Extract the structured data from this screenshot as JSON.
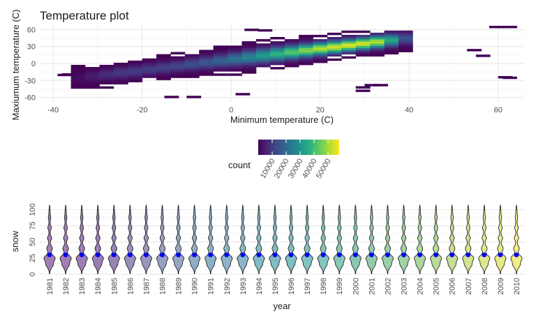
{
  "chart_data": [
    {
      "type": "heatmap",
      "title": "Temperature plot",
      "xlabel": "Minimum temperature (C)",
      "ylabel": "Maxiumum temperature (C)",
      "xlim": [
        -43,
        66
      ],
      "ylim": [
        -68,
        68
      ],
      "x_ticks": [
        -40,
        -20,
        0,
        20,
        40,
        60
      ],
      "y_ticks": [
        -60,
        -30,
        0,
        30,
        60
      ],
      "grid": true,
      "legend": {
        "title": "count",
        "position": "middle",
        "ticks": [
          "10000",
          "20000",
          "30000",
          "40000",
          "50000"
        ],
        "colors": [
          "#440154",
          "#482878",
          "#3e4a89",
          "#31688e",
          "#26828e",
          "#1f9e89",
          "#35b779",
          "#6ece58",
          "#b5de2b",
          "#fde725"
        ],
        "range": [
          0,
          58000
        ]
      },
      "correlation_band": {
        "slope": 0.95,
        "intercept": 7,
        "peak": [
          25,
          16
        ],
        "peak_count": 55000
      },
      "outlier_bins": [
        {
          "x": -39,
          "y": -22
        },
        {
          "x": -38,
          "y": -21
        },
        {
          "x": 3,
          "y": 58
        },
        {
          "x": 6,
          "y": 57
        },
        {
          "x": 58,
          "y": 63
        },
        {
          "x": 61,
          "y": 63
        },
        {
          "x": 53,
          "y": 22
        },
        {
          "x": 55,
          "y": 12
        },
        {
          "x": 60,
          "y": -26
        },
        {
          "x": 61,
          "y": -27
        },
        {
          "x": -15,
          "y": -61
        },
        {
          "x": -10,
          "y": -61
        },
        {
          "x": 1,
          "y": -56
        },
        {
          "x": 28,
          "y": -50
        },
        {
          "x": 28,
          "y": -44
        },
        {
          "x": 30,
          "y": -40
        },
        {
          "x": 32,
          "y": -40
        }
      ]
    },
    {
      "type": "violin",
      "xlabel": "year",
      "ylabel": "snow",
      "ylim": [
        0,
        108
      ],
      "y_ticks": [
        0,
        25,
        50,
        75,
        100
      ],
      "y_tick_labels": [
        "0",
        "25",
        "50",
        "75",
        "100"
      ],
      "categories": [
        "1981",
        "1982",
        "1983",
        "1984",
        "1985",
        "1986",
        "1987",
        "1988",
        "1989",
        "1990",
        "1991",
        "1992",
        "1993",
        "1994",
        "1995",
        "1996",
        "1997",
        "1998",
        "1999",
        "2000",
        "2001",
        "2002",
        "2003",
        "2004",
        "2005",
        "2006",
        "2007",
        "2008",
        "2009",
        "2010"
      ],
      "point_value": 30,
      "point_color": "#0000ff",
      "fill_colors": [
        "#a27fb3",
        "#a17fb3",
        "#9d7fb3",
        "#9a7fb3",
        "#9885b5",
        "#9a90b9",
        "#9c96bc",
        "#999fc1",
        "#97a6c3",
        "#93adc5",
        "#8fb1c6",
        "#8eb4c6",
        "#8ab6c5",
        "#86bac4",
        "#82bcc3",
        "#81bec1",
        "#84c2be",
        "#85c4bb",
        "#89c6b7",
        "#8bc8b2",
        "#95cbad",
        "#9bcfa9",
        "#a1d2a4",
        "#acd7a0",
        "#b8db9b",
        "#c7df95",
        "#d3e391",
        "#e0e88c",
        "#e8ea87",
        "#f2ec86"
      ],
      "grid": true
    }
  ]
}
